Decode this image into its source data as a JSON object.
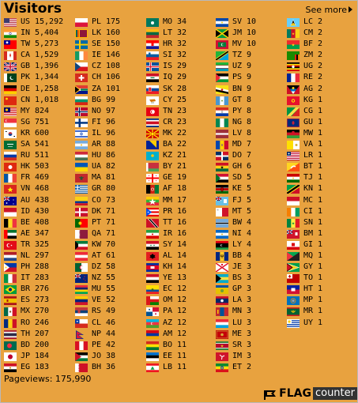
{
  "header": {
    "title": "Visitors",
    "see_more": "See more"
  },
  "footer": {
    "pageviews_label": "Pageviews:",
    "pageviews_value": "175,990",
    "logo_flag": "FLAG",
    "logo_counter": "counter"
  },
  "columns": [
    [
      {
        "code": "US",
        "count": "15,292",
        "flag": "us"
      },
      {
        "code": "IN",
        "count": "5,404",
        "flag": "in"
      },
      {
        "code": "TW",
        "count": "5,273",
        "flag": "tw"
      },
      {
        "code": "CA",
        "count": "1,529",
        "flag": "ca"
      },
      {
        "code": "GB",
        "count": "1,396",
        "flag": "gb"
      },
      {
        "code": "PK",
        "count": "1,344",
        "flag": "pk"
      },
      {
        "code": "DE",
        "count": "1,258",
        "flag": "de"
      },
      {
        "code": "CN",
        "count": "1,018",
        "flag": "cn"
      },
      {
        "code": "MY",
        "count": "824",
        "flag": "my"
      },
      {
        "code": "SG",
        "count": "751",
        "flag": "sg"
      },
      {
        "code": "KR",
        "count": "600",
        "flag": "kr"
      },
      {
        "code": "SA",
        "count": "541",
        "flag": "sa"
      },
      {
        "code": "RU",
        "count": "511",
        "flag": "ru"
      },
      {
        "code": "HK",
        "count": "503",
        "flag": "hk"
      },
      {
        "code": "FR",
        "count": "469",
        "flag": "fr"
      },
      {
        "code": "VN",
        "count": "468",
        "flag": "vn"
      },
      {
        "code": "AU",
        "count": "438",
        "flag": "au"
      },
      {
        "code": "ID",
        "count": "430",
        "flag": "id"
      },
      {
        "code": "BE",
        "count": "408",
        "flag": "be"
      },
      {
        "code": "AE",
        "count": "347",
        "flag": "ae"
      },
      {
        "code": "TR",
        "count": "325",
        "flag": "tr"
      },
      {
        "code": "NL",
        "count": "297",
        "flag": "nl"
      },
      {
        "code": "PH",
        "count": "288",
        "flag": "ph"
      },
      {
        "code": "IT",
        "count": "283",
        "flag": "it"
      },
      {
        "code": "BR",
        "count": "276",
        "flag": "br"
      },
      {
        "code": "ES",
        "count": "273",
        "flag": "es"
      },
      {
        "code": "MX",
        "count": "270",
        "flag": "mx"
      },
      {
        "code": "RO",
        "count": "246",
        "flag": "ro"
      },
      {
        "code": "TH",
        "count": "207",
        "flag": "th"
      },
      {
        "code": "BD",
        "count": "200",
        "flag": "bd"
      },
      {
        "code": "JP",
        "count": "184",
        "flag": "jp"
      },
      {
        "code": "EG",
        "count": "183",
        "flag": "eg"
      }
    ],
    [
      {
        "code": "PL",
        "count": "175",
        "flag": "pl"
      },
      {
        "code": "LK",
        "count": "160",
        "flag": "lk"
      },
      {
        "code": "SE",
        "count": "150",
        "flag": "se"
      },
      {
        "code": "IE",
        "count": "146",
        "flag": "ie"
      },
      {
        "code": "CZ",
        "count": "108",
        "flag": "cz"
      },
      {
        "code": "CH",
        "count": "106",
        "flag": "ch"
      },
      {
        "code": "ZA",
        "count": "101",
        "flag": "za"
      },
      {
        "code": "BG",
        "count": "99",
        "flag": "bg"
      },
      {
        "code": "NO",
        "count": "97",
        "flag": "no"
      },
      {
        "code": "FI",
        "count": "96",
        "flag": "fi"
      },
      {
        "code": "IL",
        "count": "96",
        "flag": "il"
      },
      {
        "code": "AR",
        "count": "88",
        "flag": "ar"
      },
      {
        "code": "HU",
        "count": "86",
        "flag": "hu"
      },
      {
        "code": "UA",
        "count": "82",
        "flag": "ua"
      },
      {
        "code": "MA",
        "count": "81",
        "flag": "ma"
      },
      {
        "code": "GR",
        "count": "80",
        "flag": "gr"
      },
      {
        "code": "CO",
        "count": "73",
        "flag": "co"
      },
      {
        "code": "DK",
        "count": "71",
        "flag": "dk"
      },
      {
        "code": "PT",
        "count": "71",
        "flag": "pt"
      },
      {
        "code": "QA",
        "count": "71",
        "flag": "qa"
      },
      {
        "code": "KW",
        "count": "70",
        "flag": "kw"
      },
      {
        "code": "AT",
        "count": "61",
        "flag": "at"
      },
      {
        "code": "DZ",
        "count": "58",
        "flag": "dz"
      },
      {
        "code": "NZ",
        "count": "55",
        "flag": "nz"
      },
      {
        "code": "MU",
        "count": "55",
        "flag": "mu"
      },
      {
        "code": "VE",
        "count": "52",
        "flag": "ve"
      },
      {
        "code": "RS",
        "count": "49",
        "flag": "rs"
      },
      {
        "code": "CL",
        "count": "46",
        "flag": "cl"
      },
      {
        "code": "NP",
        "count": "44",
        "flag": "np"
      },
      {
        "code": "PE",
        "count": "42",
        "flag": "pe"
      },
      {
        "code": "JO",
        "count": "38",
        "flag": "jo"
      },
      {
        "code": "BH",
        "count": "36",
        "flag": "bh"
      }
    ],
    [
      {
        "code": "MO",
        "count": "34",
        "flag": "mo"
      },
      {
        "code": "LT",
        "count": "32",
        "flag": "lt"
      },
      {
        "code": "HR",
        "count": "32",
        "flag": "hr"
      },
      {
        "code": "SI",
        "count": "32",
        "flag": "si"
      },
      {
        "code": "IS",
        "count": "29",
        "flag": "is"
      },
      {
        "code": "IQ",
        "count": "29",
        "flag": "iq"
      },
      {
        "code": "SK",
        "count": "28",
        "flag": "sk"
      },
      {
        "code": "CY",
        "count": "25",
        "flag": "cy"
      },
      {
        "code": "TN",
        "count": "23",
        "flag": "tn"
      },
      {
        "code": "CR",
        "count": "23",
        "flag": "cr"
      },
      {
        "code": "MK",
        "count": "22",
        "flag": "mk"
      },
      {
        "code": "BA",
        "count": "22",
        "flag": "ba"
      },
      {
        "code": "KZ",
        "count": "21",
        "flag": "kz"
      },
      {
        "code": "BY",
        "count": "21",
        "flag": "by"
      },
      {
        "code": "GE",
        "count": "19",
        "flag": "ge"
      },
      {
        "code": "AF",
        "count": "18",
        "flag": "af"
      },
      {
        "code": "MM",
        "count": "17",
        "flag": "mm"
      },
      {
        "code": "PR",
        "count": "16",
        "flag": "pr"
      },
      {
        "code": "TT",
        "count": "16",
        "flag": "tt"
      },
      {
        "code": "IR",
        "count": "16",
        "flag": "ir"
      },
      {
        "code": "SY",
        "count": "14",
        "flag": "sy"
      },
      {
        "code": "AL",
        "count": "14",
        "flag": "al"
      },
      {
        "code": "KH",
        "count": "14",
        "flag": "kh"
      },
      {
        "code": "YE",
        "count": "13",
        "flag": "ye"
      },
      {
        "code": "EC",
        "count": "12",
        "flag": "ec"
      },
      {
        "code": "OM",
        "count": "12",
        "flag": "om"
      },
      {
        "code": "PA",
        "count": "12",
        "flag": "pa"
      },
      {
        "code": "AZ",
        "count": "12",
        "flag": "az"
      },
      {
        "code": "AM",
        "count": "12",
        "flag": "am"
      },
      {
        "code": "BO",
        "count": "11",
        "flag": "bo"
      },
      {
        "code": "EE",
        "count": "11",
        "flag": "ee"
      },
      {
        "code": "LB",
        "count": "11",
        "flag": "lb"
      }
    ],
    [
      {
        "code": "SV",
        "count": "10",
        "flag": "sv"
      },
      {
        "code": "JM",
        "count": "10",
        "flag": "jm"
      },
      {
        "code": "MV",
        "count": "10",
        "flag": "mv"
      },
      {
        "code": "TZ",
        "count": "9",
        "flag": "tz"
      },
      {
        "code": "UZ",
        "count": "9",
        "flag": "uz"
      },
      {
        "code": "PS",
        "count": "9",
        "flag": "ps"
      },
      {
        "code": "BN",
        "count": "9",
        "flag": "bn"
      },
      {
        "code": "GT",
        "count": "8",
        "flag": "gt"
      },
      {
        "code": "PY",
        "count": "8",
        "flag": "py"
      },
      {
        "code": "NG",
        "count": "8",
        "flag": "ng"
      },
      {
        "code": "LV",
        "count": "8",
        "flag": "lv"
      },
      {
        "code": "MD",
        "count": "7",
        "flag": "md"
      },
      {
        "code": "DO",
        "count": "7",
        "flag": "do"
      },
      {
        "code": "GH",
        "count": "6",
        "flag": "gh"
      },
      {
        "code": "SD",
        "count": "5",
        "flag": "sd"
      },
      {
        "code": "KE",
        "count": "5",
        "flag": "ke"
      },
      {
        "code": "FJ",
        "count": "5",
        "flag": "fj"
      },
      {
        "code": "MT",
        "count": "5",
        "flag": "mt"
      },
      {
        "code": "BW",
        "count": "4",
        "flag": "bw"
      },
      {
        "code": "NI",
        "count": "4",
        "flag": "ni"
      },
      {
        "code": "LY",
        "count": "4",
        "flag": "ly"
      },
      {
        "code": "BB",
        "count": "4",
        "flag": "bb"
      },
      {
        "code": "JE",
        "count": "3",
        "flag": "je"
      },
      {
        "code": "BS",
        "count": "3",
        "flag": "bs"
      },
      {
        "code": "GP",
        "count": "3",
        "flag": "gp"
      },
      {
        "code": "LA",
        "count": "3",
        "flag": "la"
      },
      {
        "code": "MN",
        "count": "3",
        "flag": "mn"
      },
      {
        "code": "LU",
        "count": "3",
        "flag": "lu"
      },
      {
        "code": "ME",
        "count": "3",
        "flag": "me"
      },
      {
        "code": "SR",
        "count": "3",
        "flag": "sr"
      },
      {
        "code": "IM",
        "count": "3",
        "flag": "im"
      },
      {
        "code": "ET",
        "count": "2",
        "flag": "et"
      }
    ],
    [
      {
        "code": "LC",
        "count": "2",
        "flag": "lc"
      },
      {
        "code": "CM",
        "count": "2",
        "flag": "cm"
      },
      {
        "code": "BF",
        "count": "2",
        "flag": "bf"
      },
      {
        "code": "ZM",
        "count": "2",
        "flag": "zm"
      },
      {
        "code": "UG",
        "count": "2",
        "flag": "ug"
      },
      {
        "code": "RE",
        "count": "2",
        "flag": "re"
      },
      {
        "code": "AG",
        "count": "2",
        "flag": "ag"
      },
      {
        "code": "KG",
        "count": "1",
        "flag": "kg"
      },
      {
        "code": "CG",
        "count": "1",
        "flag": "cg"
      },
      {
        "code": "GU",
        "count": "1",
        "flag": "gu"
      },
      {
        "code": "MW",
        "count": "1",
        "flag": "mw"
      },
      {
        "code": "VA",
        "count": "1",
        "flag": "va"
      },
      {
        "code": "LR",
        "count": "1",
        "flag": "lr"
      },
      {
        "code": "BT",
        "count": "1",
        "flag": "bt"
      },
      {
        "code": "TJ",
        "count": "1",
        "flag": "tj"
      },
      {
        "code": "KN",
        "count": "1",
        "flag": "kn"
      },
      {
        "code": "MC",
        "count": "1",
        "flag": "mc"
      },
      {
        "code": "CI",
        "count": "1",
        "flag": "ci"
      },
      {
        "code": "SN",
        "count": "1",
        "flag": "sn"
      },
      {
        "code": "BM",
        "count": "1",
        "flag": "bm"
      },
      {
        "code": "GI",
        "count": "1",
        "flag": "gi"
      },
      {
        "code": "MQ",
        "count": "1",
        "flag": "mq"
      },
      {
        "code": "GY",
        "count": "1",
        "flag": "gy"
      },
      {
        "code": "TO",
        "count": "1",
        "flag": "to"
      },
      {
        "code": "HT",
        "count": "1",
        "flag": "ht"
      },
      {
        "code": "MP",
        "count": "1",
        "flag": "mp"
      },
      {
        "code": "MR",
        "count": "1",
        "flag": "mr"
      },
      {
        "code": "UY",
        "count": "1",
        "flag": "uy"
      }
    ]
  ]
}
